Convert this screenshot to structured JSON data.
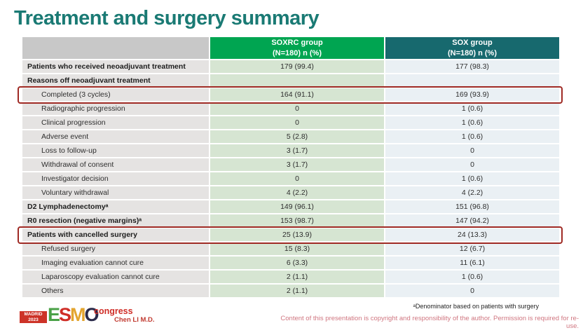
{
  "slide": {
    "title": "Treatment and surgery summary",
    "footnote": "ᵃDenominator based on patients with surgery",
    "copyright": "Content of this presentation is copyright and responsibility of the author.  Permission is required for re-use.",
    "presenter": "Chen LI M.D."
  },
  "logo": {
    "city": "MADRID",
    "year": "2023",
    "letters": [
      "E",
      "S",
      "M",
      "O"
    ],
    "congress": "congress"
  },
  "table": {
    "header": {
      "soxrc_line1": "SOXRC group",
      "soxrc_line2": "(N=180)  n (%)",
      "sox_line1": "SOX group",
      "sox_line2": "(N=180)  n (%)"
    },
    "rows": [
      {
        "label": "Patients who received neoadjuvant treatment",
        "soxrc": "179 (99.4)",
        "sox": "177 (98.3)",
        "bold": true,
        "indent": false,
        "highlight": false
      },
      {
        "label": "Reasons off neoadjuvant treatment",
        "soxrc": "",
        "sox": "",
        "bold": true,
        "indent": false,
        "highlight": false
      },
      {
        "label": "Completed (3 cycles)",
        "soxrc": "164 (91.1)",
        "sox": "169 (93.9)",
        "bold": false,
        "indent": true,
        "highlight": true
      },
      {
        "label": "Radiographic progression",
        "soxrc": "0",
        "sox": "1 (0.6)",
        "bold": false,
        "indent": true,
        "highlight": false
      },
      {
        "label": "Clinical progression",
        "soxrc": "0",
        "sox": "1 (0.6)",
        "bold": false,
        "indent": true,
        "highlight": false
      },
      {
        "label": "Adverse event",
        "soxrc": "5 (2.8)",
        "sox": "1 (0.6)",
        "bold": false,
        "indent": true,
        "highlight": false
      },
      {
        "label": "Loss to follow-up",
        "soxrc": "3 (1.7)",
        "sox": "0",
        "bold": false,
        "indent": true,
        "highlight": false
      },
      {
        "label": "Withdrawal of consent",
        "soxrc": "3 (1.7)",
        "sox": "0",
        "bold": false,
        "indent": true,
        "highlight": false
      },
      {
        "label": "Investigator decision",
        "soxrc": "0",
        "sox": "1 (0.6)",
        "bold": false,
        "indent": true,
        "highlight": false
      },
      {
        "label": "Voluntary withdrawal",
        "soxrc": "4 (2.2)",
        "sox": "4 (2.2)",
        "bold": false,
        "indent": true,
        "highlight": false
      },
      {
        "label": "D2 Lymphadenectomyᵃ",
        "soxrc": "149 (96.1)",
        "sox": "151 (96.8)",
        "bold": true,
        "indent": false,
        "highlight": false
      },
      {
        "label": "R0 resection (negative margins)ᵃ",
        "soxrc": "153 (98.7)",
        "sox": "147 (94.2)",
        "bold": true,
        "indent": false,
        "highlight": false
      },
      {
        "label": "Patients with cancelled surgery",
        "soxrc": "25 (13.9)",
        "sox": "24 (13.3)",
        "bold": true,
        "indent": false,
        "highlight": true
      },
      {
        "label": "Refused surgery",
        "soxrc": "15 (8.3)",
        "sox": "12 (6.7)",
        "bold": false,
        "indent": true,
        "highlight": false
      },
      {
        "label": "Imaging evaluation cannot cure",
        "soxrc": "6 (3.3)",
        "sox": "11 (6.1)",
        "bold": false,
        "indent": true,
        "highlight": false
      },
      {
        "label": "Laparoscopy evaluation cannot cure",
        "soxrc": "2 (1.1)",
        "sox": "1 (0.6)",
        "bold": false,
        "indent": true,
        "highlight": false
      },
      {
        "label": "Others",
        "soxrc": "2 (1.1)",
        "sox": "0",
        "bold": false,
        "indent": true,
        "highlight": false
      }
    ]
  },
  "colors": {
    "title_teal": "#1a7a74",
    "soxrc_header_green": "#00a551",
    "sox_header_teal": "#17696e",
    "soxrc_cell_green": "#d6e5d2",
    "sox_cell_blue": "#eaf0f4",
    "label_cell_gray": "#e5e3e2",
    "highlight_red": "#9f2a24",
    "copyright_pink": "#d07680",
    "presenter_red": "#c13a30",
    "madrid_badge_red": "#cd3328"
  }
}
